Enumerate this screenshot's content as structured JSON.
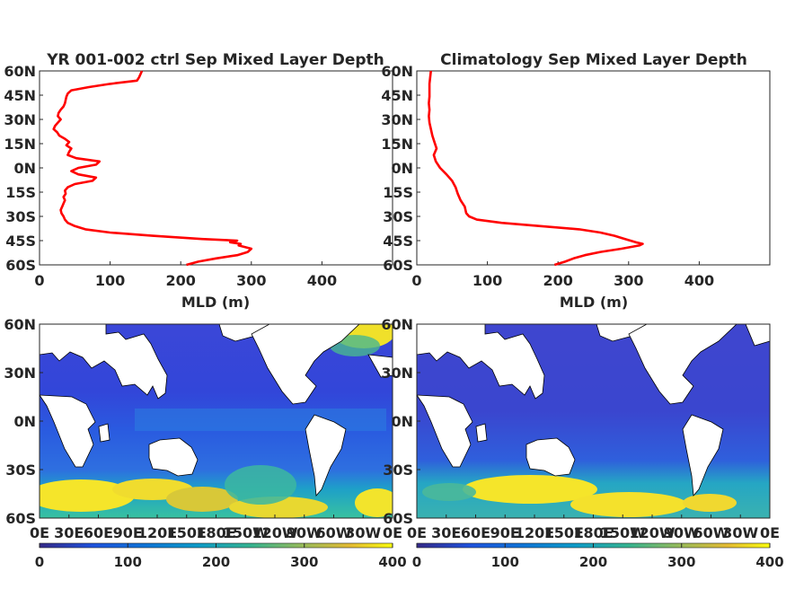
{
  "chart_data": [
    {
      "type": "line",
      "title": "YR 001-002 ctrl Sep Mixed Layer Depth",
      "xlabel": "MLD (m)",
      "ylabel": "",
      "xlim": [
        0,
        500
      ],
      "ylim": [
        -60,
        60
      ],
      "xticks": [
        "0",
        "100",
        "200",
        "300",
        "400"
      ],
      "yticks": [
        "60N",
        "45N",
        "30N",
        "15N",
        "0N",
        "15S",
        "30S",
        "45S",
        "60S"
      ],
      "line_color": "#ff0000",
      "series": [
        {
          "lat": [
            60,
            58,
            56,
            54,
            52,
            50,
            48,
            46,
            44,
            42,
            40,
            38,
            36,
            34,
            32,
            30,
            28,
            26,
            24,
            22,
            20,
            18,
            16,
            14,
            12,
            10,
            8,
            6,
            4,
            2,
            0,
            -2,
            -4,
            -6,
            -8,
            -10,
            -12,
            -14,
            -16,
            -18,
            -20,
            -22,
            -24,
            -26,
            -28,
            -30,
            -32,
            -34,
            -36,
            -38,
            -40,
            -42,
            -44,
            -45,
            -46,
            -47,
            -48,
            -50,
            -52,
            -54,
            -56,
            -58,
            -60
          ],
          "mld": [
            145,
            143,
            141,
            138,
            100,
            70,
            45,
            40,
            38,
            37,
            36,
            34,
            30,
            27,
            26,
            30,
            26,
            22,
            20,
            25,
            28,
            36,
            42,
            38,
            45,
            42,
            40,
            52,
            85,
            80,
            55,
            45,
            55,
            80,
            75,
            50,
            40,
            36,
            37,
            34,
            36,
            34,
            32,
            30,
            31,
            34,
            36,
            40,
            50,
            65,
            100,
            160,
            230,
            280,
            270,
            285,
            282,
            300,
            295,
            280,
            250,
            225,
            208
          ]
        }
      ]
    },
    {
      "type": "line",
      "title": "Climatology Sep Mixed Layer Depth",
      "xlabel": "MLD (m)",
      "ylabel": "",
      "xlim": [
        0,
        500
      ],
      "ylim": [
        -60,
        60
      ],
      "xticks": [
        "0",
        "100",
        "200",
        "300",
        "400"
      ],
      "yticks": [
        "60N",
        "45N",
        "30N",
        "15N",
        "0N",
        "15S",
        "30S",
        "45S",
        "60S"
      ],
      "line_color": "#ff0000",
      "series": [
        {
          "lat": [
            60,
            56,
            52,
            48,
            44,
            40,
            36,
            32,
            28,
            24,
            20,
            16,
            12,
            8,
            4,
            0,
            -4,
            -8,
            -12,
            -16,
            -20,
            -24,
            -28,
            -30,
            -32,
            -34,
            -36,
            -38,
            -40,
            -42,
            -44,
            -46,
            -47,
            -48,
            -50,
            -52,
            -54,
            -56,
            -58,
            -60
          ],
          "mld": [
            20,
            19,
            18,
            18,
            18,
            17,
            18,
            17,
            18,
            20,
            22,
            25,
            28,
            24,
            27,
            33,
            42,
            50,
            55,
            58,
            62,
            68,
            70,
            74,
            85,
            120,
            175,
            230,
            260,
            280,
            295,
            310,
            320,
            315,
            290,
            260,
            238,
            222,
            210,
            195
          ]
        }
      ]
    },
    {
      "type": "heatmap",
      "title": "",
      "xlabel": "",
      "ylabel": "",
      "xticks": [
        "0E",
        "30E",
        "60E",
        "90E",
        "120E",
        "150E",
        "180E",
        "150W",
        "120W",
        "90W",
        "60W",
        "30W",
        "0E"
      ],
      "yticks": [
        "60N",
        "30N",
        "0N",
        "30S",
        "60S"
      ],
      "colorbar": {
        "ticks": [
          "0",
          "100",
          "200",
          "300",
          "400"
        ],
        "range": [
          0,
          400
        ]
      }
    },
    {
      "type": "heatmap",
      "title": "",
      "xlabel": "",
      "ylabel": "",
      "xticks": [
        "0E",
        "30E",
        "60E",
        "90E",
        "120E",
        "150E",
        "180E",
        "150W",
        "120W",
        "90W",
        "60W",
        "30W",
        "0E"
      ],
      "yticks": [
        "60N",
        "30N",
        "0N",
        "30S",
        "60S"
      ],
      "colorbar": {
        "ticks": [
          "0",
          "100",
          "200",
          "300",
          "400"
        ],
        "range": [
          0,
          400
        ]
      }
    }
  ]
}
